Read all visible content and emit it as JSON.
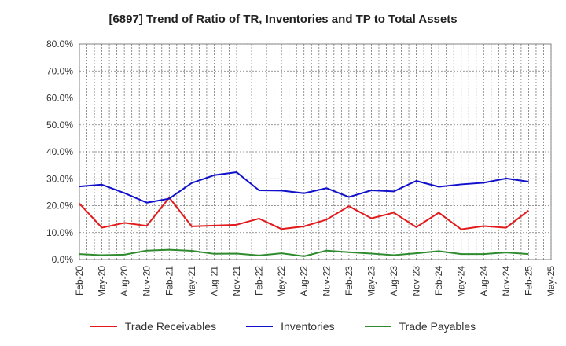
{
  "chart_data": {
    "type": "line",
    "title": "[6897]  Trend of Ratio of TR, Inventories and TP to Total Assets",
    "xlabel": "",
    "ylabel": "",
    "y_unit": "%",
    "ylim": [
      0,
      80
    ],
    "y_ticks": [
      "0.0%",
      "10.0%",
      "20.0%",
      "30.0%",
      "40.0%",
      "50.0%",
      "60.0%",
      "70.0%",
      "80.0%"
    ],
    "x_tick_labels": [
      "Feb-20",
      "May-20",
      "Aug-20",
      "Nov-20",
      "Feb-21",
      "May-21",
      "Aug-21",
      "Nov-21",
      "Feb-22",
      "May-22",
      "Aug-22",
      "Nov-22",
      "Feb-23",
      "May-23",
      "Aug-23",
      "Nov-23",
      "Feb-24",
      "May-24",
      "Aug-24",
      "Nov-24",
      "Feb-25",
      "May-25"
    ],
    "x": [
      "Feb-20",
      "May-20",
      "Aug-20",
      "Nov-20",
      "Feb-21",
      "May-21",
      "Aug-21",
      "Nov-21",
      "Feb-22",
      "May-22",
      "Aug-22",
      "Nov-22",
      "Feb-23",
      "May-23",
      "Aug-23",
      "Nov-23",
      "Feb-24",
      "May-24",
      "Aug-24",
      "Nov-24",
      "Feb-25"
    ],
    "grid": true,
    "legend_position": "bottom",
    "series": [
      {
        "name": "Trade Receivables",
        "color": "#e31a1c",
        "values": [
          20.8,
          11.8,
          13.6,
          12.5,
          23.0,
          12.3,
          12.6,
          12.9,
          15.2,
          11.3,
          12.3,
          14.8,
          19.8,
          15.3,
          17.4,
          12.0,
          17.4,
          11.2,
          12.4,
          11.8,
          18.2
        ]
      },
      {
        "name": "Inventories",
        "color": "#1010cc",
        "values": [
          27.1,
          27.8,
          24.7,
          21.1,
          22.6,
          28.4,
          31.3,
          32.4,
          25.7,
          25.6,
          24.6,
          26.5,
          23.2,
          25.7,
          25.3,
          29.2,
          27.0,
          27.9,
          28.5,
          30.1,
          28.9
        ]
      },
      {
        "name": "Trade Payables",
        "color": "#2e8b2e",
        "values": [
          2.0,
          1.6,
          1.8,
          3.3,
          3.6,
          3.2,
          2.1,
          2.2,
          1.5,
          2.3,
          1.2,
          3.3,
          2.7,
          2.2,
          1.6,
          2.3,
          3.1,
          2.0,
          2.0,
          2.6,
          2.0
        ]
      }
    ]
  }
}
